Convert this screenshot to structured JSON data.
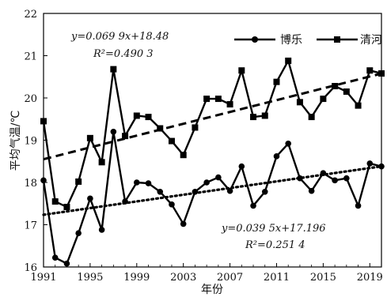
{
  "chart_data": {
    "type": "line",
    "xlabel": "年份",
    "ylabel": "平均气温/℃",
    "xlim": [
      1991,
      2020
    ],
    "ylim": [
      16,
      22
    ],
    "xticks": [
      1991,
      1995,
      1999,
      2003,
      2007,
      2011,
      2015,
      2019
    ],
    "yticks": [
      16,
      17,
      18,
      19,
      20,
      21,
      22
    ],
    "x": [
      1991,
      1992,
      1993,
      1994,
      1995,
      1996,
      1997,
      1998,
      1999,
      2000,
      2001,
      2002,
      2003,
      2004,
      2005,
      2006,
      2007,
      2008,
      2009,
      2010,
      2011,
      2012,
      2013,
      2014,
      2015,
      2016,
      2017,
      2018,
      2019,
      2020
    ],
    "series": [
      {
        "name": "博乐",
        "marker": "circle",
        "values": [
          18.05,
          16.22,
          16.08,
          16.8,
          17.62,
          16.88,
          19.2,
          17.55,
          18.0,
          17.98,
          17.78,
          17.48,
          17.02,
          17.78,
          18.0,
          18.12,
          17.8,
          18.38,
          17.45,
          17.78,
          18.62,
          18.92,
          18.1,
          17.8,
          18.22,
          18.05,
          18.1,
          17.45,
          18.45,
          18.38
        ],
        "trend": {
          "slope": 0.0395,
          "intercept": 17.196,
          "style": "dotted",
          "equation": "y=0.039 5x+17.196",
          "r2": "R²=0.251 4"
        }
      },
      {
        "name": "清河",
        "marker": "square",
        "values": [
          19.45,
          17.55,
          17.42,
          18.02,
          19.05,
          18.48,
          20.68,
          19.1,
          19.58,
          19.55,
          19.28,
          18.98,
          18.65,
          19.3,
          19.98,
          19.98,
          19.85,
          20.65,
          19.55,
          19.58,
          20.38,
          20.88,
          19.9,
          19.55,
          19.98,
          20.28,
          20.15,
          19.82,
          20.65,
          20.58
        ],
        "trend": {
          "slope": 0.0699,
          "intercept": 18.48,
          "style": "dashed",
          "equation": "y=0.069 9x+18.48",
          "r2": "R²=0.490 3"
        }
      }
    ],
    "legend": "top-right",
    "grid": false
  }
}
